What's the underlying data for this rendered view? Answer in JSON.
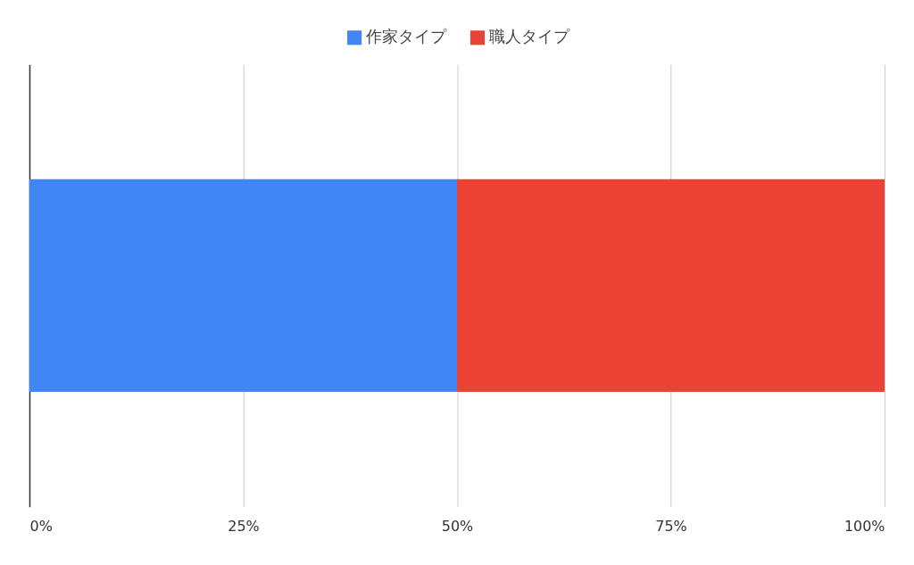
{
  "chart_data": {
    "type": "bar",
    "orientation": "horizontal",
    "stacked": true,
    "categories": [
      null
    ],
    "series": [
      {
        "name": "作家タイプ",
        "color": "#4285f4",
        "values": [
          50
        ]
      },
      {
        "name": "職人タイプ",
        "color": "#ea4335",
        "values": [
          50
        ]
      }
    ],
    "xlim": [
      0,
      100
    ],
    "xticks": [
      {
        "value": 0,
        "label": "0%"
      },
      {
        "value": 25,
        "label": "25%"
      },
      {
        "value": 50,
        "label": "50%"
      },
      {
        "value": 75,
        "label": "75%"
      },
      {
        "value": 100,
        "label": "100%"
      }
    ],
    "grid": "x",
    "legend": "top"
  }
}
